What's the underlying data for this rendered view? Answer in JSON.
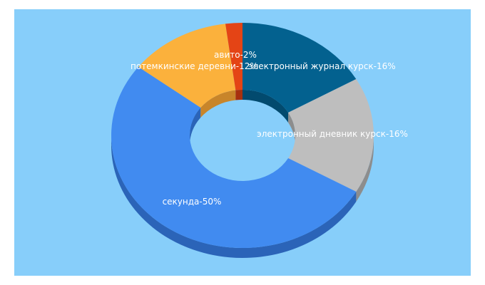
{
  "chart_data": {
    "type": "pie",
    "variant": "3d-donut",
    "slices": [
      {
        "name": "электронный журнал курск",
        "value": 16,
        "label": "электронный журнал курск-16%",
        "color": "#03618f",
        "side": "#024a6e"
      },
      {
        "name": "электронный дневник курск",
        "value": 16,
        "label": "электронный дневник курск-16%",
        "color": "#bebebe",
        "side": "#8d8d8d"
      },
      {
        "name": "секунда",
        "value": 50,
        "label": "секунда-50%",
        "color": "#418bf0",
        "side": "#2b64b8"
      },
      {
        "name": "потемкинские деревни",
        "value": 12,
        "label": "потемкинские деревни-12%",
        "color": "#fbb13c",
        "side": "#c8852a"
      },
      {
        "name": "авито",
        "value": 2,
        "label": "авито-2%",
        "color": "#e44415",
        "side": "#a8300e"
      }
    ],
    "background": "#87cefa"
  }
}
